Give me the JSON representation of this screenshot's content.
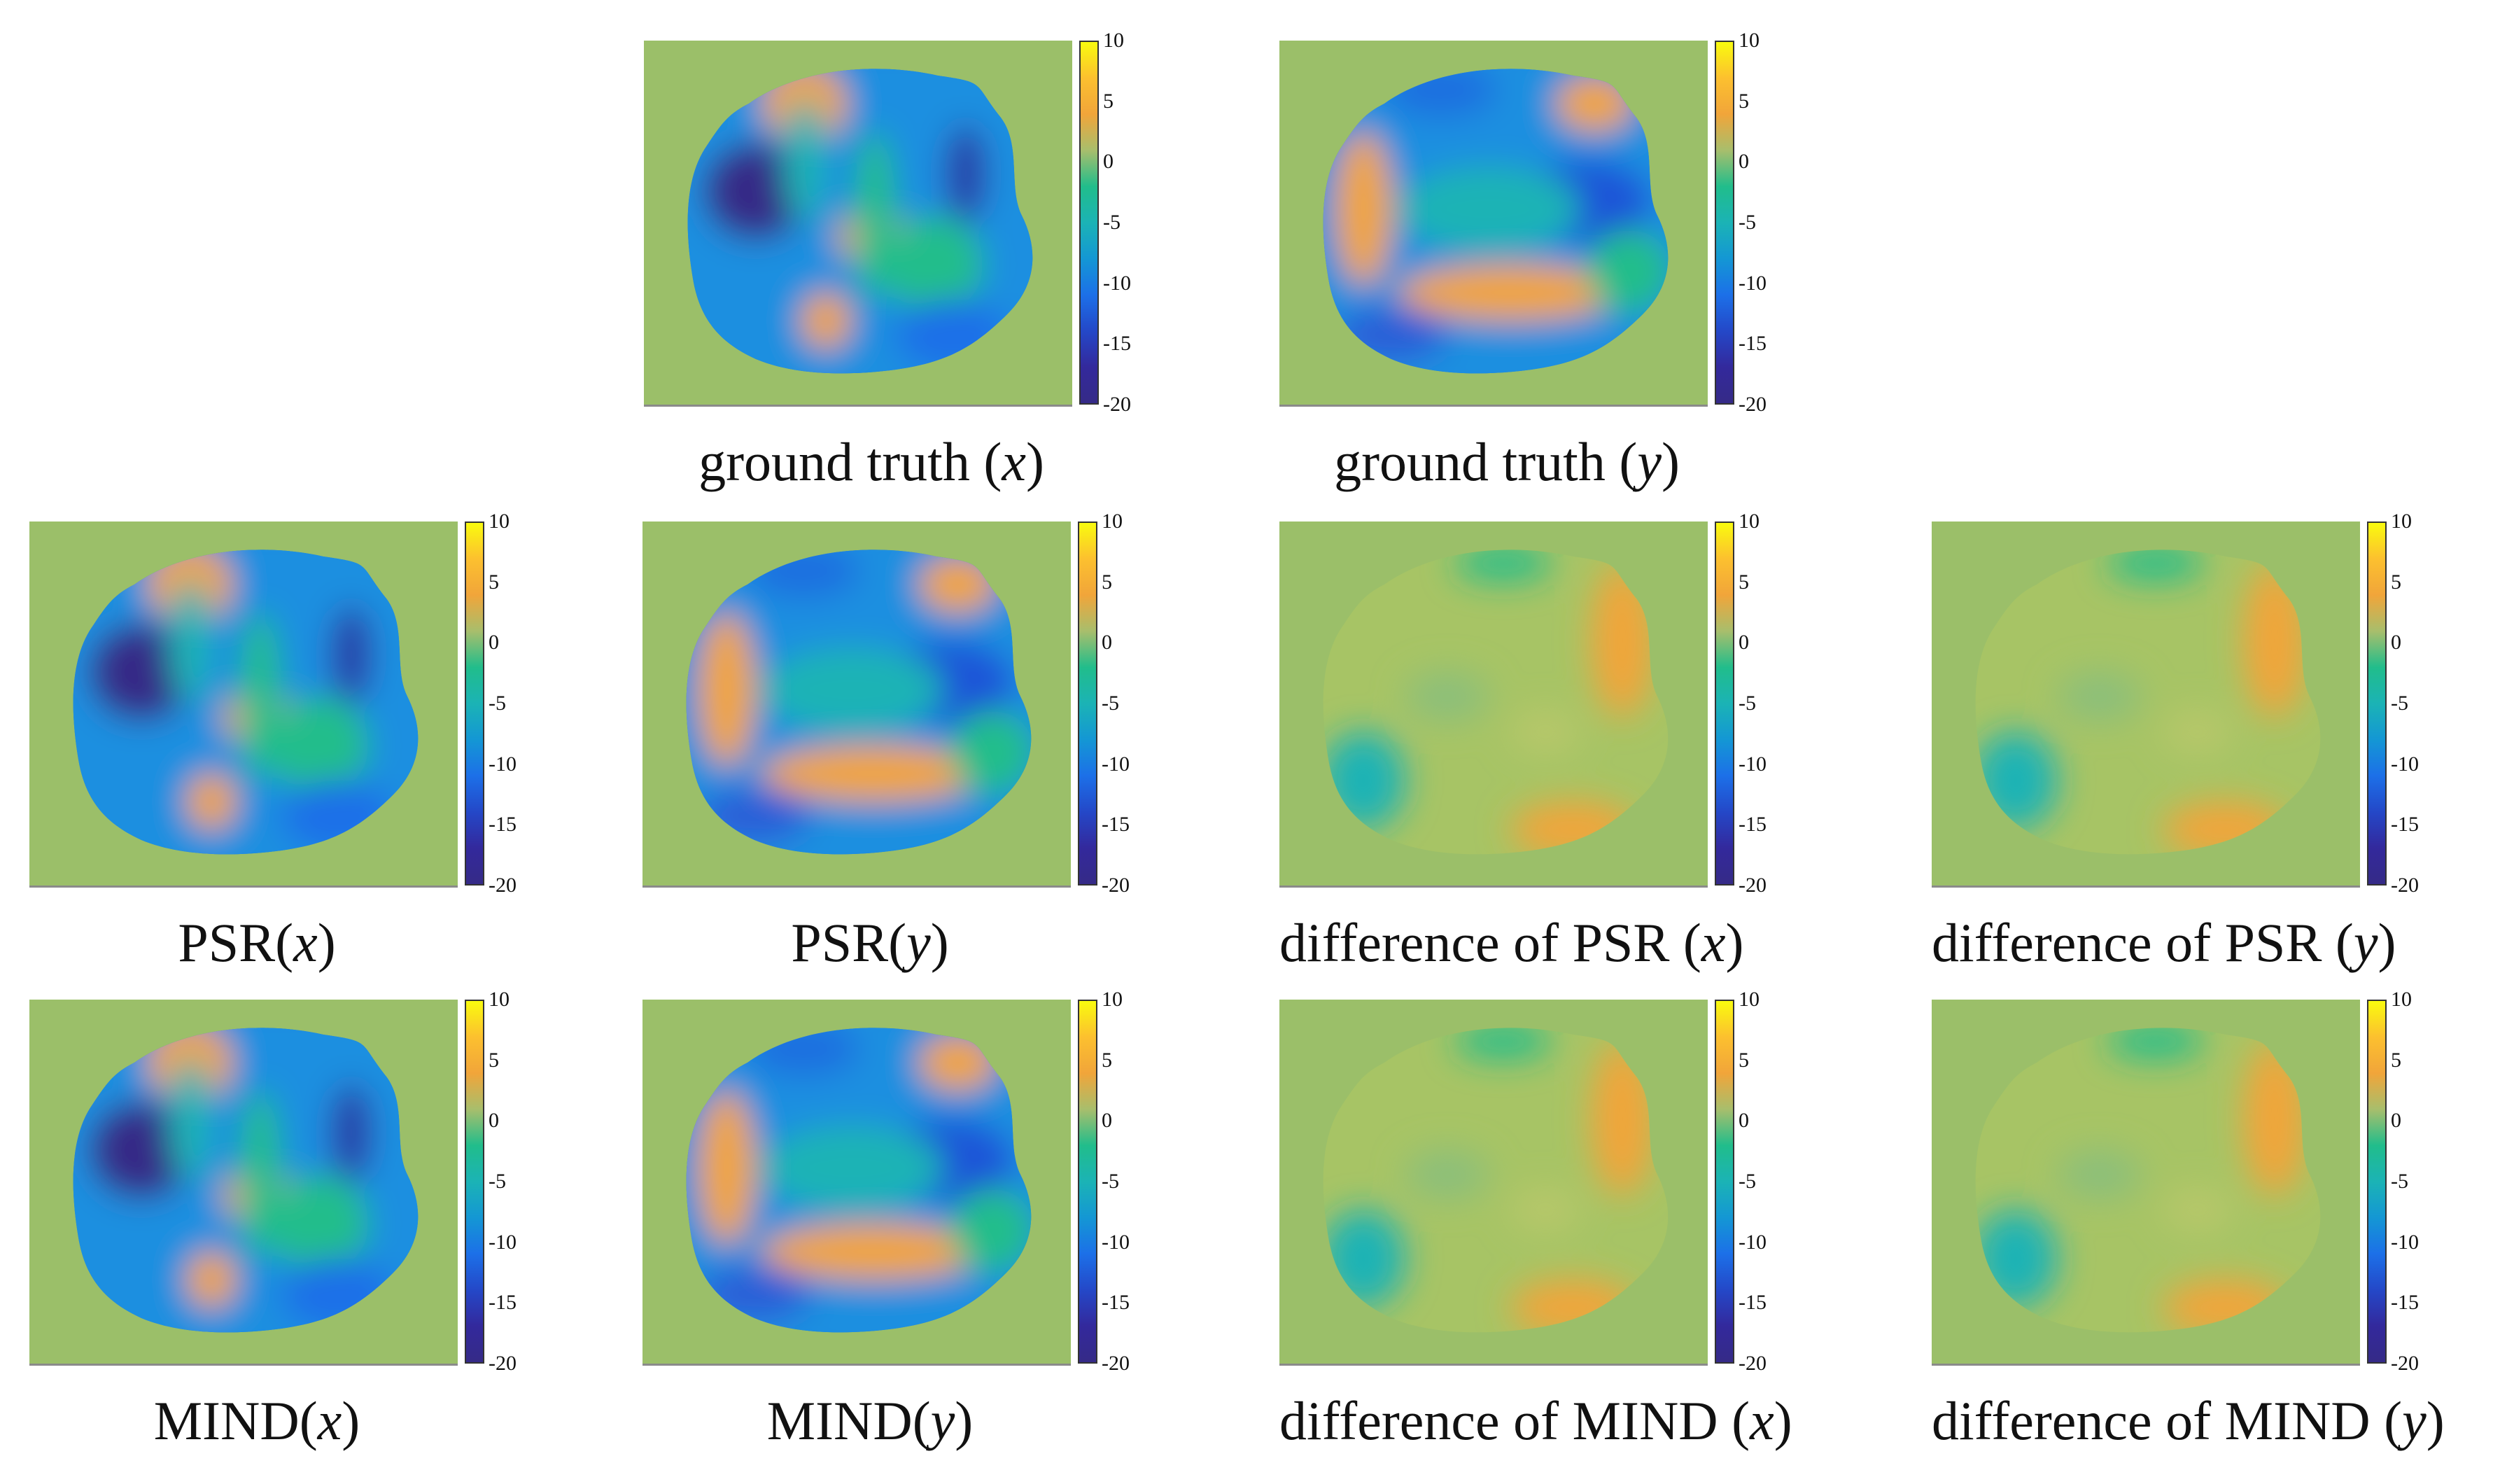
{
  "colorbar": {
    "ticks": [
      "10",
      "5",
      "0",
      "-5",
      "-10",
      "-15",
      "-20"
    ],
    "max": 10,
    "min": -20
  },
  "panels": [
    {
      "id": "gt-x",
      "caption_prefix": "ground truth (",
      "caption_var": "x",
      "caption_suffix": ")",
      "kind": "field-x"
    },
    {
      "id": "gt-y",
      "caption_prefix": "ground truth (",
      "caption_var": "y",
      "caption_suffix": ")",
      "kind": "field-y"
    },
    {
      "id": "psr-x",
      "caption_prefix": "PSR(",
      "caption_var": "x",
      "caption_suffix": ")",
      "kind": "field-x"
    },
    {
      "id": "psr-y",
      "caption_prefix": "PSR(",
      "caption_var": "y",
      "caption_suffix": ")",
      "kind": "field-y"
    },
    {
      "id": "diff-psr-x",
      "caption_prefix": "difference of PSR (",
      "caption_var": "x",
      "caption_suffix": ")",
      "kind": "diff"
    },
    {
      "id": "diff-psr-y",
      "caption_prefix": "difference of PSR (",
      "caption_var": "y",
      "caption_suffix": ")",
      "kind": "diff"
    },
    {
      "id": "mind-x",
      "caption_prefix": "MIND(",
      "caption_var": "x",
      "caption_suffix": ")",
      "kind": "field-x"
    },
    {
      "id": "mind-y",
      "caption_prefix": "MIND(",
      "caption_var": "y",
      "caption_suffix": ")",
      "kind": "field-y"
    },
    {
      "id": "diff-mind-x",
      "caption_prefix": "difference of MIND (",
      "caption_var": "x",
      "caption_suffix": ")",
      "kind": "diff"
    },
    {
      "id": "diff-mind-y",
      "caption_prefix": "difference of MIND (",
      "caption_var": "y",
      "caption_suffix": ")",
      "kind": "diff"
    }
  ],
  "colors": {
    "background": "#9bbf69",
    "yellow": "#f9fb0e",
    "orange": "#f1a53a",
    "green": "#21bd8b",
    "cyan": "#1bb3b5",
    "blue": "#1c70e8",
    "darkblue": "#352a87"
  }
}
